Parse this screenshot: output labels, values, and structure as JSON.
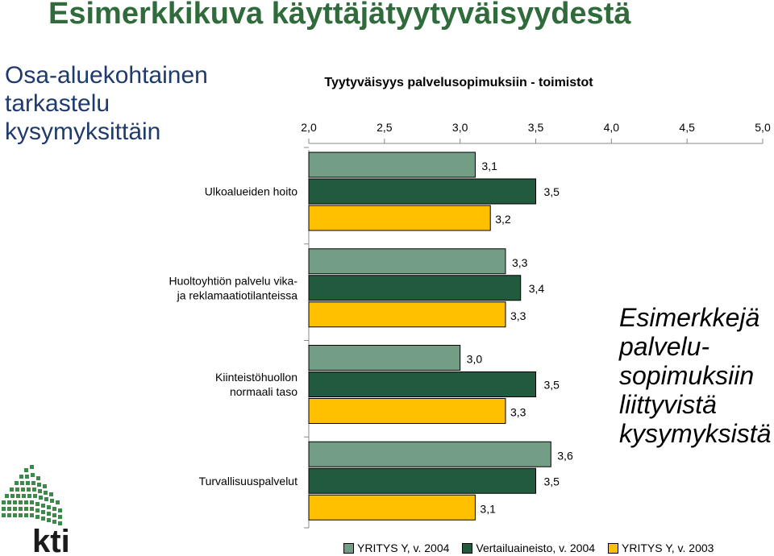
{
  "page": {
    "title": "Esimerkkikuva käyttäjätyytyväisyydestä",
    "side_title": "Osa-aluekohtainen tarkastelu kysymyksittäin",
    "examples_note": "Esimerkkejä palvelu-sopimuksiin liittyvistä kysymyksistä",
    "logo_text": "kti"
  },
  "chart_data": {
    "type": "bar",
    "orientation": "horizontal",
    "title": "Tyytyväisyys palvelusopimuksiin - toimistot",
    "xlim": [
      2.0,
      5.0
    ],
    "x_ticks": [
      "2,0",
      "2,5",
      "3,0",
      "3,5",
      "4,0",
      "4,5",
      "5,0"
    ],
    "categories": [
      [
        "Ulkoalueiden hoito"
      ],
      [
        "Huoltoyhtiön palvelu vika-",
        "ja reklamaatiotilanteissa"
      ],
      [
        "Kiinteistöhuollon",
        "normaali taso"
      ],
      [
        "Turvallisuuspalvelut"
      ]
    ],
    "series": [
      {
        "name": "YRITYS Y, v. 2004",
        "color": "#739e85",
        "values": [
          3.1,
          3.3,
          3.0,
          3.6
        ],
        "labels": [
          "3,1",
          "3,3",
          "3,0",
          "3,6"
        ]
      },
      {
        "name": "Vertailuaineisto, v. 2004",
        "color": "#225a3e",
        "values": [
          3.5,
          3.4,
          3.5,
          3.5
        ],
        "labels": [
          "3,5",
          "3,4",
          "3,5",
          "3,5"
        ]
      },
      {
        "name": "YRITYS Y, v. 2003",
        "color": "#ffc000",
        "values": [
          3.2,
          3.3,
          3.3,
          3.1
        ],
        "labels": [
          "3,2",
          "3,3",
          "3,3",
          "3,1"
        ]
      }
    ],
    "legend_position": "bottom",
    "grid": false
  }
}
